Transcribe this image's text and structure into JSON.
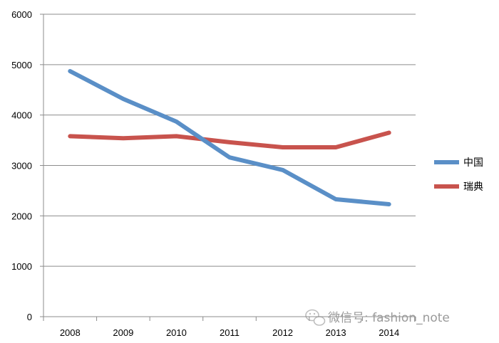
{
  "chart_data": {
    "type": "line",
    "categories": [
      "2008",
      "2009",
      "2010",
      "2011",
      "2012",
      "2013",
      "2014"
    ],
    "series": [
      {
        "name": "中国",
        "values": [
          4870,
          4320,
          3870,
          3160,
          2910,
          2330,
          2230
        ],
        "color": "#5a8fc7"
      },
      {
        "name": "瑞典",
        "values": [
          3580,
          3540,
          3580,
          3460,
          3360,
          3360,
          3650
        ],
        "color": "#c8534d"
      }
    ],
    "yticks": [
      "0",
      "1000",
      "2000",
      "3000",
      "4000",
      "5000",
      "6000"
    ],
    "ylim": [
      0,
      6000
    ],
    "grid": "horizontal",
    "legend_position": "right"
  },
  "watermark": {
    "text": "微信号: fashion_note",
    "icon": "wechat-icon"
  }
}
